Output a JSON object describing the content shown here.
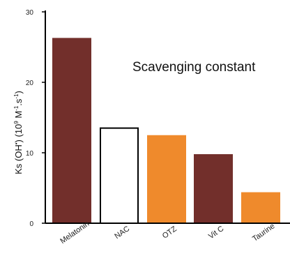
{
  "chart_data": {
    "type": "bar",
    "title": "",
    "annotation": "Scavenging constant",
    "xlabel": "",
    "ylabel": {
      "prefix": "Ks (OH",
      "dot": "•",
      "middle": ") (10",
      "exp9": "9",
      "m": " M",
      "expm1": "-1",
      "s": ".s",
      "expm1b": "-1",
      "suffix": ")"
    },
    "ylim": [
      0,
      30
    ],
    "yticks": [
      0,
      10,
      20,
      30
    ],
    "grid": false,
    "legend": "none",
    "categories": [
      "Melatonin",
      "NAC",
      "OTZ",
      "Vit C",
      "Taurine"
    ],
    "values": [
      26.3,
      13.6,
      12.5,
      9.8,
      4.4
    ],
    "bar_colors": [
      "#722f2b",
      "#ffffff",
      "#ef8a2c",
      "#722f2b",
      "#ef8a2c"
    ],
    "bar_strokes": [
      "none",
      "#000000",
      "none",
      "none",
      "none"
    ],
    "label_colors": [
      "#222222",
      "#222222",
      "#ef8a2c",
      "#222222",
      "#222222"
    ]
  }
}
